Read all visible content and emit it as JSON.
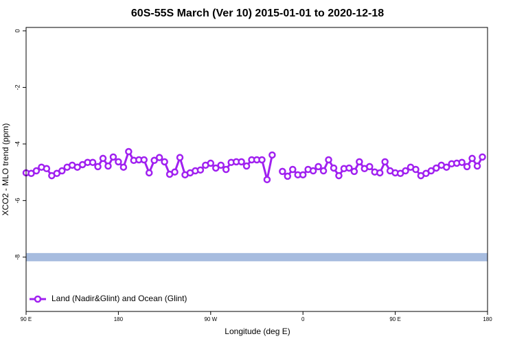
{
  "chart_data": {
    "type": "line",
    "title": "60S-55S March (Ver 10)   2015-01-01 to 2020-12-18",
    "x_label": "Longitude (deg E)",
    "y_label": "XCO2 - MLO trend (ppm)",
    "x": [
      90,
      95,
      100,
      105,
      110,
      115,
      120,
      125,
      130,
      135,
      140,
      145,
      150,
      155,
      160,
      165,
      170,
      175,
      180,
      185,
      190,
      195,
      200,
      205,
      210,
      215,
      220,
      225,
      230,
      235,
      240,
      245,
      250,
      255,
      260,
      265,
      270,
      275,
      280,
      285,
      290,
      295,
      300,
      305,
      310,
      315,
      320,
      325,
      330,
      335,
      340,
      345,
      350,
      355,
      360,
      365,
      370,
      375,
      380,
      385,
      390,
      395,
      400,
      405,
      410,
      415,
      420,
      425,
      430,
      435,
      440,
      445,
      450,
      455,
      460,
      465,
      470,
      475,
      480,
      485,
      490,
      495,
      500,
      505,
      510,
      515,
      520,
      525,
      530,
      535
    ],
    "series": [
      {
        "name": "Land (Nadir&Glint) and Ocean (Glint)",
        "color": "#a020f0",
        "values": [
          -5.02,
          -5.04,
          -4.95,
          -4.82,
          -4.87,
          -5.12,
          -5.04,
          -4.95,
          -4.82,
          -4.75,
          -4.82,
          -4.73,
          -4.65,
          -4.65,
          -4.8,
          -4.51,
          -4.78,
          -4.46,
          -4.63,
          -4.82,
          -4.27,
          -4.58,
          -4.56,
          -4.56,
          -5.02,
          -4.58,
          -4.48,
          -4.63,
          -5.07,
          -4.99,
          -4.48,
          -5.09,
          -5.02,
          -4.95,
          -4.92,
          -4.75,
          -4.68,
          -4.85,
          -4.75,
          -4.9,
          -4.65,
          -4.63,
          -4.63,
          -4.78,
          -4.56,
          -4.56,
          -4.56,
          -5.26,
          -4.39,
          null,
          -4.97,
          -5.14,
          -4.9,
          -5.09,
          -5.09,
          -4.9,
          -4.95,
          -4.8,
          -4.95,
          -4.56,
          -4.85,
          -5.12,
          -4.87,
          -4.85,
          -4.97,
          -4.63,
          -4.87,
          -4.8,
          -4.99,
          -5.02,
          -4.63,
          -4.95,
          -5.02,
          -5.04,
          -4.95,
          -4.82,
          -4.9,
          -5.12,
          -5.04,
          -4.95,
          -4.85,
          -4.75,
          -4.82,
          -4.7,
          -4.68,
          -4.65,
          -4.8,
          -4.51,
          -4.78,
          -4.46
        ]
      }
    ],
    "reference_lines": [
      {
        "value": -8,
        "color": "#a7bcdf"
      }
    ],
    "xlim": [
      90,
      540
    ],
    "xticks": [
      {
        "value": 90,
        "label": "90 E"
      },
      180,
      {
        "value": 270,
        "label": "90 W"
      },
      {
        "value": 360,
        "label": "0"
      },
      {
        "value": 450,
        "label": "90 E"
      },
      {
        "value": 540,
        "label": "180"
      }
    ],
    "ylim": [
      -9.92,
      0.12
    ],
    "yticks": [
      0,
      -2,
      -4,
      -6,
      -8
    ],
    "legend": "bottom-left"
  }
}
